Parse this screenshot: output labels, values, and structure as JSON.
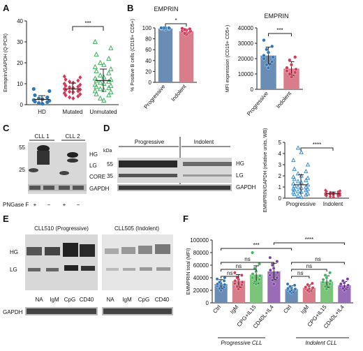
{
  "panels": {
    "A": {
      "letter": "A"
    },
    "B": {
      "letter": "B",
      "title": "EMPRIN"
    },
    "C": {
      "letter": "C",
      "lanes": [
        "CLL 1",
        "CLL 2"
      ],
      "bands": [
        "HG",
        "LG",
        "CORE",
        "GAPDH"
      ],
      "ticks": [
        "55",
        "25"
      ],
      "pngase_label": "PNGase F",
      "pngase_signs": [
        "+",
        "−",
        "+",
        "−"
      ]
    },
    "D": {
      "letter": "D",
      "kda": "kDa",
      "groups": [
        "Progressive",
        "Indolent"
      ],
      "bands": [
        "HG",
        "LG",
        "GAPDH"
      ],
      "ticks": [
        "55",
        "35"
      ]
    },
    "E": {
      "letter": "E",
      "left_title": "CLL510 (Progressive)",
      "right_title": "CLL505 (Indolent)",
      "bands": [
        "HG",
        "LG"
      ],
      "gapdh": "GAPDH",
      "lanes": [
        "NA",
        "IgM",
        "CpG",
        "CD40",
        "NA",
        "IgM",
        "CpG",
        "CD40"
      ]
    },
    "F": {
      "letter": "F",
      "group_progressive": "Progressive CLL",
      "group_indolent": "Indolent CLL"
    }
  },
  "colors": {
    "blue": "#2e78b8",
    "red": "#d23a5a",
    "green": "#3cb45a",
    "steelblue": "#5b8cc0",
    "pink": "#e07b8c",
    "barblue": "#6a8db5",
    "barred": "#d97d8a",
    "bargreen": "#7cc47a",
    "barpurple": "#9a6cb8",
    "cyanblue": "#3a8fd8"
  },
  "chart_data": [
    {
      "panel": "A",
      "type": "scatter",
      "categories": [
        "HD",
        "Mutated",
        "Unmutated"
      ],
      "ylabel": "Emmprin/GAPDH (Q-PCR)",
      "ylim": [
        0,
        40
      ],
      "yticks": [
        0,
        10,
        20,
        30,
        40
      ],
      "significance": [
        {
          "from": "Mutated",
          "to": "Unmutated",
          "label": "***"
        }
      ],
      "series": [
        {
          "category": "HD",
          "marker": "circle",
          "color": "#2e78b8",
          "mean": 2.5,
          "sd": 1.8,
          "values": [
            0.4,
            0.8,
            1.2,
            1.5,
            1.9,
            2.2,
            2.6,
            3.0,
            3.5,
            4.5,
            6.5,
            7.5
          ]
        },
        {
          "category": "Mutated",
          "marker": "diamond",
          "color": "#d23a5a",
          "mean": 7.5,
          "sd": 2.8,
          "values": [
            3.0,
            3.5,
            4.0,
            4.5,
            5.0,
            5.5,
            6.0,
            6.2,
            6.5,
            7.0,
            7.2,
            7.5,
            8.0,
            8.3,
            8.6,
            9.0,
            9.5,
            10.0,
            10.5,
            11.0,
            11.5,
            12.0,
            13.0,
            13.5
          ]
        },
        {
          "category": "Unmutated",
          "marker": "triangle",
          "color": "#3cb45a",
          "mean": 11.5,
          "sd": 5.5,
          "values": [
            2.0,
            3.0,
            4.5,
            5.0,
            6.0,
            6.5,
            7.0,
            7.5,
            8.0,
            8.5,
            9.0,
            9.5,
            10.0,
            10.5,
            11.0,
            11.5,
            12.0,
            12.5,
            13.0,
            14.0,
            15.0,
            16.0,
            17.0,
            18.0,
            19.0,
            20.0,
            22.0,
            24.0,
            27.0,
            30.0
          ]
        }
      ]
    },
    {
      "panel": "B1",
      "type": "bar",
      "categories": [
        "Progressive",
        "Indolent"
      ],
      "ylabel": "% Positive B cells (CD19+ CD5+)",
      "ylim": [
        0,
        100
      ],
      "yticks": [
        0,
        20,
        40,
        60,
        80,
        100
      ],
      "values": [
        99,
        94
      ],
      "errors": [
        1.5,
        4
      ],
      "bar_colors": [
        "#6a8db5",
        "#d97d8a"
      ],
      "point_colors": [
        "#2e78b8",
        "#d23a5a"
      ],
      "points": [
        [
          97,
          98,
          98.5,
          99,
          99,
          99.5,
          100,
          100,
          100,
          100
        ],
        [
          88,
          90,
          92,
          93,
          94,
          95,
          96,
          97,
          98,
          99
        ]
      ],
      "significance": [
        {
          "from": "Progressive",
          "to": "Indolent",
          "label": "*"
        }
      ]
    },
    {
      "panel": "B2",
      "type": "bar",
      "categories": [
        "Progressive",
        "Indolent"
      ],
      "ylabel": "MFI expression (CD19+ CD5+)",
      "ylim": [
        0,
        40000
      ],
      "yticks": [
        0,
        10000,
        20000,
        30000,
        40000
      ],
      "values": [
        22000,
        13500
      ],
      "errors": [
        5500,
        4500
      ],
      "bar_colors": [
        "#6a8db5",
        "#d97d8a"
      ],
      "point_colors": [
        "#2e78b8",
        "#d23a5a"
      ],
      "points": [
        [
          14000,
          16000,
          18000,
          20000,
          21000,
          22000,
          24000,
          26000,
          28000,
          32000
        ],
        [
          8000,
          10000,
          11000,
          12000,
          13000,
          14000,
          16000,
          19000,
          21000
        ]
      ],
      "significance": [
        {
          "from": "Progressive",
          "to": "Indolent",
          "label": "***"
        }
      ]
    },
    {
      "panel": "D",
      "type": "scatter",
      "categories": [
        "Progressive",
        "Indolent"
      ],
      "ylabel": "EMMPRIN/GAPDH (relative units, WB)",
      "ylim": [
        0,
        5
      ],
      "yticks": [
        0,
        1,
        2,
        3,
        4,
        5
      ],
      "significance": [
        {
          "from": "Progressive",
          "to": "Indolent",
          "label": "****"
        }
      ],
      "series": [
        {
          "category": "Progressive",
          "marker": "triangle",
          "color": "#3a8fd8",
          "mean": 1.2,
          "sd": 0.9,
          "values": [
            0.1,
            0.2,
            0.3,
            0.35,
            0.4,
            0.5,
            0.55,
            0.6,
            0.7,
            0.75,
            0.8,
            0.85,
            0.9,
            1.0,
            1.0,
            1.1,
            1.2,
            1.3,
            1.4,
            1.5,
            1.6,
            1.7,
            1.8,
            1.9,
            2.0,
            2.2,
            2.4,
            2.6,
            3.0,
            3.4,
            4.1,
            4.5
          ]
        },
        {
          "category": "Indolent",
          "marker": "diamond",
          "color": "#d23a5a",
          "mean": 0.4,
          "sd": 0.15,
          "values": [
            0.1,
            0.15,
            0.2,
            0.22,
            0.25,
            0.28,
            0.3,
            0.32,
            0.35,
            0.38,
            0.4,
            0.42,
            0.45,
            0.5,
            0.55,
            0.6,
            0.65,
            0.7
          ]
        }
      ]
    },
    {
      "panel": "F",
      "type": "bar",
      "categories": [
        "Ctrl",
        "IgM",
        "CPG+IL15",
        "CD40L+IL4",
        "Ctrl",
        "IgM",
        "CPG+IL15",
        "CD40L+IL4"
      ],
      "ylabel": "EMMPRIN total (MFI)",
      "ylim": [
        0,
        100000
      ],
      "yticks": [
        0,
        20000,
        40000,
        60000,
        80000,
        100000
      ],
      "values": [
        30000,
        35000,
        45000,
        50000,
        22000,
        24000,
        34000,
        28000
      ],
      "errors": [
        7000,
        10000,
        14000,
        13000,
        5000,
        5000,
        9000,
        6000
      ],
      "bar_colors": [
        "#6a8db5",
        "#d97d8a",
        "#7cc47a",
        "#9a6cb8",
        "#6a8db5",
        "#d97d8a",
        "#7cc47a",
        "#9a6cb8"
      ],
      "point_colors": [
        "#2e78b8",
        "#d23a5a",
        "#3cb45a",
        "#7a3ea8",
        "#2e78b8",
        "#d23a5a",
        "#3cb45a",
        "#7a3ea8"
      ],
      "points": [
        [
          20000,
          23000,
          25000,
          27000,
          29000,
          30000,
          31000,
          33000,
          35000,
          38000,
          40000
        ],
        [
          22000,
          26000,
          29000,
          31000,
          33000,
          35000,
          37000,
          40000,
          44000,
          48000
        ],
        [
          30000,
          34000,
          37000,
          40000,
          43000,
          46000,
          50000,
          55000,
          62000,
          80000
        ],
        [
          30000,
          36000,
          40000,
          44000,
          48000,
          52000,
          55000,
          60000,
          66000,
          72000
        ],
        [
          16000,
          18000,
          20000,
          21000,
          22000,
          23000,
          24000,
          26000,
          28000,
          30000
        ],
        [
          18000,
          20000,
          22000,
          23000,
          24000,
          25000,
          27000,
          29000,
          31000
        ],
        [
          22000,
          26000,
          30000,
          33000,
          35000,
          37000,
          40000,
          44000,
          48000
        ],
        [
          20000,
          23000,
          25000,
          27000,
          28000,
          30000,
          32000,
          35000,
          38000
        ]
      ],
      "groups": [
        "Progressive CLL",
        "Indolent CLL"
      ],
      "significance": [
        {
          "from": "Ctrl",
          "to": "IgM",
          "group": "Progressive CLL",
          "label": "ns"
        },
        {
          "from": "Ctrl",
          "to": "CPG+IL15",
          "group": "Progressive CLL",
          "label": "ns"
        },
        {
          "from": "Ctrl",
          "to": "CD40L+IL4",
          "group": "Progressive CLL",
          "label": "ns"
        },
        {
          "from": "Ctrl",
          "to": "IgM",
          "group": "Indolent CLL",
          "label": "ns"
        },
        {
          "from": "Ctrl",
          "to": "CPG+IL15",
          "group": "Indolent CLL",
          "label": "ns"
        },
        {
          "from": "Ctrl",
          "to": "CD40L+IL4",
          "group": "Indolent CLL",
          "label": "ns"
        },
        {
          "from": "Progressive Ctrl",
          "to": "Indolent Ctrl",
          "label": "***"
        },
        {
          "from": "Progressive CD40L+IL4",
          "to": "Indolent CD40L+IL4",
          "label": "****"
        }
      ]
    }
  ]
}
